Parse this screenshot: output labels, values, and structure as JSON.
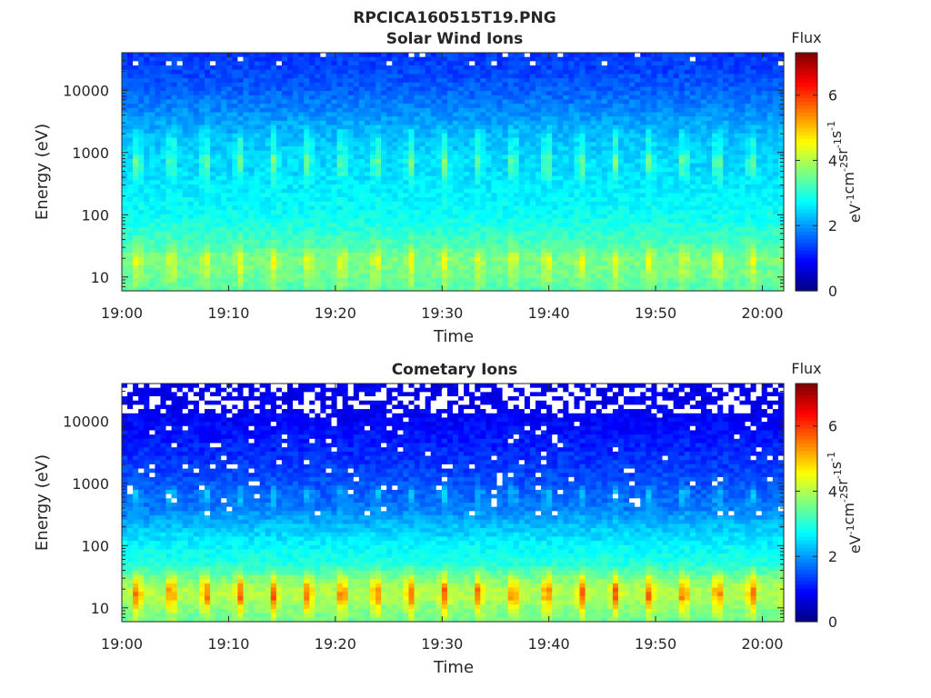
{
  "figure": {
    "title": "RPCICA160515T19.PNG"
  },
  "colorbar": {
    "label": "Flux",
    "unit_base": [
      "eV",
      "cm",
      "sr",
      "s"
    ],
    "unit_exp": [
      "-1",
      "-2",
      "-1",
      "-1"
    ],
    "ticks": [
      "0",
      "2",
      "4",
      "6"
    ],
    "range": [
      0,
      7.3
    ],
    "colormap": "jet"
  },
  "chart_data": [
    {
      "type": "heatmap",
      "title": "Solar Wind Ions",
      "xlabel": "Time",
      "ylabel": "Energy (eV)",
      "yscale": "log",
      "ylim": [
        6,
        40000
      ],
      "xlim": [
        "19:00",
        "20:02"
      ],
      "x_ticks": [
        "19:00",
        "19:10",
        "19:20",
        "19:30",
        "19:40",
        "19:50",
        "20:00"
      ],
      "y_ticks": [
        "10",
        "100",
        "1000",
        "10000"
      ],
      "y_tick_values": [
        10,
        100,
        1000,
        10000
      ],
      "colorbar_range": [
        0,
        7.3
      ],
      "sweep_period_minutes": 3.2,
      "profile": {
        "energy_eV": [
          6,
          10,
          20,
          30,
          60,
          100,
          300,
          600,
          800,
          1000,
          1500,
          3000,
          10000,
          20000,
          40000
        ],
        "background_flux": [
          3.3,
          3.5,
          3.6,
          3.3,
          3.0,
          2.8,
          2.6,
          2.45,
          2.5,
          2.4,
          2.3,
          2.1,
          1.6,
          1.4,
          1.3
        ],
        "peak_flux": [
          3.6,
          4.0,
          4.6,
          3.6,
          3.0,
          2.8,
          2.7,
          3.5,
          3.7,
          3.0,
          3.0,
          2.1,
          1.6,
          1.4,
          1.3
        ]
      },
      "gap_fraction": 0.002
    },
    {
      "type": "heatmap",
      "title": "Cometary Ions",
      "xlabel": "Time",
      "ylabel": "Energy (eV)",
      "yscale": "log",
      "ylim": [
        6,
        40000
      ],
      "xlim": [
        "19:00",
        "20:02"
      ],
      "x_ticks": [
        "19:00",
        "19:10",
        "19:20",
        "19:30",
        "19:40",
        "19:50",
        "20:00"
      ],
      "y_ticks": [
        "10",
        "100",
        "1000",
        "10000"
      ],
      "y_tick_values": [
        10,
        100,
        1000,
        10000
      ],
      "colorbar_range": [
        0,
        7.3
      ],
      "sweep_period_minutes": 3.2,
      "profile": {
        "energy_eV": [
          6,
          10,
          15,
          20,
          30,
          50,
          100,
          200,
          400,
          700,
          1000,
          2000,
          5000,
          10000,
          20000,
          40000
        ],
        "background_flux": [
          3.5,
          3.7,
          4.0,
          4.0,
          3.6,
          3.0,
          2.7,
          2.3,
          1.8,
          1.6,
          1.5,
          1.3,
          1.1,
          0.9,
          0.8,
          0.8
        ],
        "peak_flux": [
          3.8,
          4.8,
          5.8,
          5.6,
          4.4,
          3.0,
          2.7,
          2.3,
          2.0,
          2.4,
          1.6,
          1.3,
          1.1,
          0.9,
          0.8,
          0.8
        ]
      },
      "gap_fraction_high": 0.35,
      "gap_fraction_mid": 0.03
    }
  ]
}
